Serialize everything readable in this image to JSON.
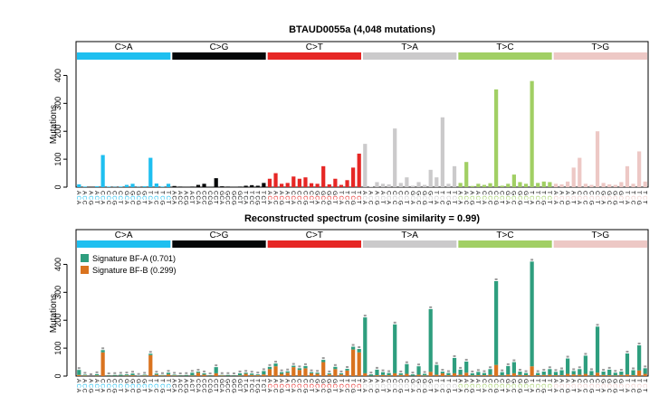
{
  "chart_data": [
    {
      "type": "bar",
      "title": "BTAUD0055a (4,048 mutations)",
      "ylabel": "Mutations",
      "ylim": [
        0,
        450
      ],
      "yticks": [
        0,
        100,
        200,
        300,
        400
      ],
      "grid": false,
      "mutation_classes": [
        "C>A",
        "C>G",
        "C>T",
        "T>A",
        "T>C",
        "T>G"
      ],
      "class_colors": [
        "#1ebff0",
        "#050708",
        "#e62725",
        "#cbcacb",
        "#a1cf64",
        "#edc8c5"
      ],
      "context_labels": [
        "ACA",
        "ACC",
        "ACG",
        "ACT",
        "CCA",
        "CCC",
        "CCG",
        "CCT",
        "GCA",
        "GCC",
        "GCG",
        "GCT",
        "TCA",
        "TCC",
        "TCG",
        "TCT",
        "ATA",
        "ATC",
        "ATG",
        "ATT",
        "CTA",
        "CTC",
        "CTG",
        "CTT",
        "GTA",
        "GTC",
        "GTG",
        "GTT",
        "TTA",
        "TTC",
        "TTG",
        "TTT"
      ],
      "values": [
        [
          10,
          2,
          0,
          3,
          115,
          2,
          1,
          2,
          8,
          12,
          1,
          3,
          105,
          13,
          2,
          12
        ],
        [
          4,
          2,
          1,
          2,
          8,
          12,
          1,
          32,
          3,
          2,
          1,
          2,
          5,
          7,
          5,
          15
        ],
        [
          30,
          50,
          12,
          15,
          38,
          30,
          35,
          14,
          12,
          75,
          10,
          30,
          8,
          25,
          70,
          120
        ],
        [
          155,
          2,
          18,
          12,
          10,
          210,
          15,
          35,
          5,
          18,
          8,
          62,
          35,
          250,
          12,
          75
        ],
        [
          15,
          90,
          4,
          12,
          8,
          14,
          350,
          5,
          12,
          45,
          18,
          12,
          380,
          15,
          20,
          18
        ],
        [
          12,
          10,
          20,
          70,
          105,
          12,
          8,
          200,
          15,
          10,
          8,
          18,
          75,
          12,
          128,
          20
        ]
      ]
    },
    {
      "type": "bar",
      "title": "Reconstructed spectrum (cosine similarity = 0.99)",
      "ylabel": "Mutations",
      "ylim": [
        0,
        450
      ],
      "yticks": [
        0,
        100,
        200,
        300,
        400
      ],
      "grid": false,
      "stacked": true,
      "legend_position": "top-left",
      "mutation_classes": [
        "C>A",
        "C>G",
        "C>T",
        "T>A",
        "T>C",
        "T>G"
      ],
      "class_colors": [
        "#1ebff0",
        "#050708",
        "#e62725",
        "#cbcacb",
        "#a1cf64",
        "#edc8c5"
      ],
      "context_labels": [
        "ACA",
        "ACC",
        "ACG",
        "ACT",
        "CCA",
        "CCC",
        "CCG",
        "CCT",
        "GCA",
        "GCC",
        "GCG",
        "GCT",
        "TCA",
        "TCC",
        "TCG",
        "TCT",
        "ATA",
        "ATC",
        "ATG",
        "ATT",
        "CTA",
        "CTC",
        "CTG",
        "CTT",
        "GTA",
        "GTC",
        "GTG",
        "GTT",
        "TTA",
        "TTC",
        "TTG",
        "TTT"
      ],
      "series": [
        {
          "name": "Signature BF-A (0.701)",
          "color": "#2e9e7e",
          "values": [
            [
              18,
              3,
              0,
              5,
              8,
              2,
              3,
              4,
              4,
              6,
              1,
              3,
              5,
              4,
              2,
              6
            ],
            [
              3,
              2,
              3,
              10,
              4,
              5,
              2,
              22,
              2,
              3,
              2,
              8,
              4,
              5,
              3,
              12
            ],
            [
              8,
              10,
              6,
              5,
              5,
              6,
              8,
              4,
              4,
              8,
              4,
              8,
              4,
              6,
              10,
              12
            ],
            [
              200,
              5,
              20,
              10,
              8,
              175,
              6,
              35,
              5,
              30,
              6,
              225,
              35,
              6,
              8,
              55
            ],
            [
              18,
              40,
              8,
              12,
              8,
              20,
              300,
              12,
              30,
              40,
              12,
              8,
              375,
              8,
              12,
              20
            ],
            [
              12,
              18,
              55,
              12,
              20,
              65,
              16,
              165,
              12,
              20,
              10,
              12,
              75,
              18,
              90,
              20
            ]
          ]
        },
        {
          "name": "Signature BF-B (0.299)",
          "color": "#d9731f",
          "values": [
            [
              4,
              2,
              0,
              2,
              85,
              1,
              1,
              1,
              2,
              3,
              0,
              2,
              75,
              5,
              2,
              6
            ],
            [
              2,
              1,
              1,
              2,
              12,
              5,
              1,
              10,
              2,
              1,
              1,
              2,
              8,
              4,
              3,
              6
            ],
            [
              25,
              35,
              8,
              12,
              32,
              22,
              28,
              10,
              8,
              50,
              6,
              25,
              6,
              20,
              95,
              85
            ],
            [
              10,
              1,
              3,
              4,
              3,
              10,
              4,
              8,
              1,
              5,
              2,
              15,
              5,
              10,
              3,
              10
            ],
            [
              5,
              12,
              2,
              3,
              3,
              5,
              40,
              2,
              6,
              10,
              4,
              3,
              35,
              3,
              4,
              5
            ],
            [
              3,
              3,
              8,
              6,
              5,
              8,
              2,
              12,
              4,
              3,
              2,
              4,
              6,
              3,
              20,
              8
            ]
          ]
        }
      ]
    }
  ]
}
